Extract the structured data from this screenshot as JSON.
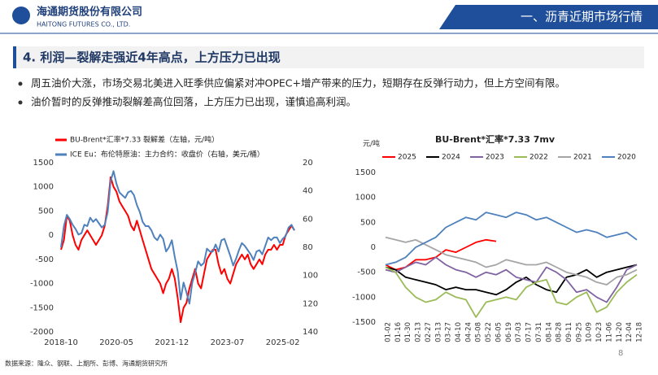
{
  "header": {
    "company": "海通期货股份有限公司",
    "company_en": "HAITONG FUTURES CO., LTD.",
    "section": "一、沥青近期市场行情"
  },
  "heading": "4. 利润—裂解走强近4年高点，上方压力已出现",
  "bullets": [
    "周五油价大涨，市场交易北美进入旺季供应偏紧对冲OPEC+增产带来的压力，短期存在反弹行动力，但上方空间有限。",
    "油价暂时的反弹推动裂解差高位回落，上方压力已出现，谨慎追高利润。"
  ],
  "footer": "数据来源：隆众、钢联、上期所、彭博、海通期货研究所",
  "page_number": "8",
  "chart_data": [
    {
      "type": "line",
      "x": [
        "2018-10",
        "2018-11",
        "2018-12",
        "2019-01",
        "2019-02",
        "2019-03",
        "2019-04",
        "2019-05",
        "2019-06",
        "2019-07",
        "2019-08",
        "2019-09",
        "2019-10",
        "2019-11",
        "2019-12",
        "2020-01",
        "2020-02",
        "2020-03",
        "2020-04",
        "2020-05",
        "2020-06",
        "2020-07",
        "2020-08",
        "2020-09",
        "2020-10",
        "2020-11",
        "2020-12",
        "2021-01",
        "2021-02",
        "2021-03",
        "2021-04",
        "2021-05",
        "2021-06",
        "2021-07",
        "2021-08",
        "2021-09",
        "2021-10",
        "2021-11",
        "2021-12",
        "2022-01",
        "2022-02",
        "2022-03",
        "2022-04",
        "2022-05",
        "2022-06",
        "2022-07",
        "2022-08",
        "2022-09",
        "2022-10",
        "2022-11",
        "2022-12",
        "2023-01",
        "2023-02",
        "2023-03",
        "2023-04",
        "2023-05",
        "2023-06",
        "2023-07",
        "2023-08",
        "2023-09",
        "2023-10",
        "2023-11",
        "2023-12",
        "2024-01",
        "2024-02",
        "2024-03",
        "2024-04",
        "2024-05",
        "2024-06",
        "2024-07",
        "2024-08",
        "2024-09",
        "2024-10",
        "2024-11",
        "2024-12",
        "2025-01",
        "2025-02",
        "2025-03",
        "2025-04",
        "2025-05",
        "2025-06"
      ],
      "xticks": [
        "2018-10",
        "2020-05",
        "2021-12",
        "2023-07",
        "2025-02"
      ],
      "ylim": [
        -2000,
        1500
      ],
      "yticks": [
        1500,
        1000,
        500,
        0,
        -500,
        -1000,
        -1500,
        -2000
      ],
      "y2lim": [
        140,
        20
      ],
      "y2ticks": [
        20,
        40,
        60,
        80,
        100,
        120,
        140
      ],
      "series": [
        {
          "name": "BU-Brent*汇率*7.33 裂解差（左轴，元/吨）",
          "color": "#ff0000",
          "values": [
            -300,
            -100,
            400,
            300,
            0,
            -200,
            -300,
            -100,
            0,
            100,
            0,
            -100,
            -200,
            -100,
            0,
            200,
            600,
            1200,
            1000,
            900,
            700,
            600,
            500,
            400,
            200,
            100,
            300,
            100,
            -100,
            -300,
            -500,
            -700,
            -800,
            -900,
            -1000,
            -1200,
            -1000,
            -900,
            -700,
            -900,
            -1300,
            -1800,
            -1500,
            -1400,
            -1100,
            -900,
            -700,
            -1000,
            -1100,
            -800,
            -500,
            -400,
            -300,
            -300,
            -600,
            -800,
            -700,
            -900,
            -1000,
            -800,
            -600,
            -500,
            -400,
            -500,
            -400,
            -600,
            -700,
            -600,
            -500,
            -600,
            -400,
            -300,
            -300,
            -200,
            -300,
            -200,
            -200,
            0,
            100,
            200,
            100
          ]
        },
        {
          "name": "ICE Eu：布伦特原油：主力合约：收盘价（右轴，美元/桶）",
          "color": "#4f81bd",
          "axis": "y2",
          "values": [
            80,
            65,
            57,
            60,
            64,
            67,
            71,
            70,
            64,
            65,
            59,
            62,
            60,
            63,
            66,
            64,
            55,
            33,
            26,
            35,
            41,
            43,
            45,
            41,
            40,
            43,
            50,
            55,
            62,
            65,
            65,
            68,
            73,
            75,
            71,
            74,
            83,
            80,
            75,
            87,
            97,
            117,
            105,
            112,
            120,
            105,
            98,
            90,
            93,
            91,
            81,
            83,
            83,
            78,
            83,
            75,
            74,
            80,
            86,
            93,
            88,
            82,
            77,
            79,
            82,
            85,
            89,
            83,
            82,
            85,
            79,
            73,
            75,
            73,
            73,
            77,
            74,
            72,
            66,
            64,
            68
          ]
        }
      ]
    },
    {
      "type": "line",
      "title": "BU-Brent*汇率*7.33 7mv",
      "y_label": "元/吨",
      "categories": [
        "01-02",
        "01-16",
        "01-30",
        "02-13",
        "02-27",
        "03-13",
        "03-27",
        "04-10",
        "04-24",
        "05-08",
        "05-22",
        "06-05",
        "06-19",
        "07-03",
        "07-17",
        "07-31",
        "08-14",
        "08-28",
        "09-11",
        "09-25",
        "10-09",
        "10-23",
        "11-06",
        "11-20",
        "12-04",
        "12-18"
      ],
      "ylim": [
        -1500,
        1500
      ],
      "yticks": [
        1500,
        1000,
        500,
        0,
        -500,
        -1000,
        -1500
      ],
      "series": [
        {
          "name": "2025",
          "color": "#ff0000",
          "values": [
            -350,
            -450,
            -400,
            -250,
            -250,
            -200,
            -50,
            -100,
            0,
            100,
            150,
            120,
            null,
            null,
            null,
            null,
            null,
            null,
            null,
            null,
            null,
            null,
            null,
            null,
            null,
            null
          ]
        },
        {
          "name": "2024",
          "color": "#000000",
          "values": [
            -400,
            -450,
            -600,
            -650,
            -700,
            -750,
            -850,
            -800,
            -850,
            -850,
            -900,
            -950,
            -850,
            -700,
            -600,
            -750,
            -850,
            -900,
            -600,
            -550,
            -450,
            -600,
            -500,
            -450,
            -400,
            -350
          ]
        },
        {
          "name": "2023",
          "color": "#8064a2",
          "values": [
            -450,
            -500,
            -400,
            -300,
            -350,
            -200,
            -350,
            -450,
            -500,
            -600,
            -500,
            -550,
            -450,
            -600,
            -650,
            -700,
            -400,
            -500,
            -650,
            -900,
            -850,
            -1000,
            -1100,
            -800,
            -450,
            -350
          ]
        },
        {
          "name": "2022",
          "color": "#9bbb59",
          "values": [
            -400,
            -500,
            -800,
            -1000,
            -1100,
            -1050,
            -900,
            -1000,
            -1050,
            -1400,
            -1100,
            -1050,
            -1000,
            -1050,
            -800,
            -700,
            -650,
            -1100,
            -1150,
            -1000,
            -900,
            -1300,
            -1200,
            -900,
            -700,
            -550
          ]
        },
        {
          "name": "2021",
          "color": "#a5a5a5",
          "values": [
            200,
            150,
            100,
            150,
            50,
            -50,
            -150,
            -200,
            -250,
            -300,
            -400,
            -350,
            -250,
            -300,
            -350,
            -350,
            -300,
            -400,
            -500,
            -550,
            -600,
            -700,
            -750,
            -600,
            -550,
            -450
          ]
        },
        {
          "name": "2020",
          "color": "#4f81bd",
          "values": [
            -350,
            -300,
            -200,
            0,
            100,
            200,
            400,
            500,
            600,
            550,
            700,
            650,
            600,
            700,
            650,
            550,
            600,
            500,
            400,
            300,
            350,
            300,
            200,
            250,
            300,
            150
          ]
        }
      ]
    }
  ]
}
